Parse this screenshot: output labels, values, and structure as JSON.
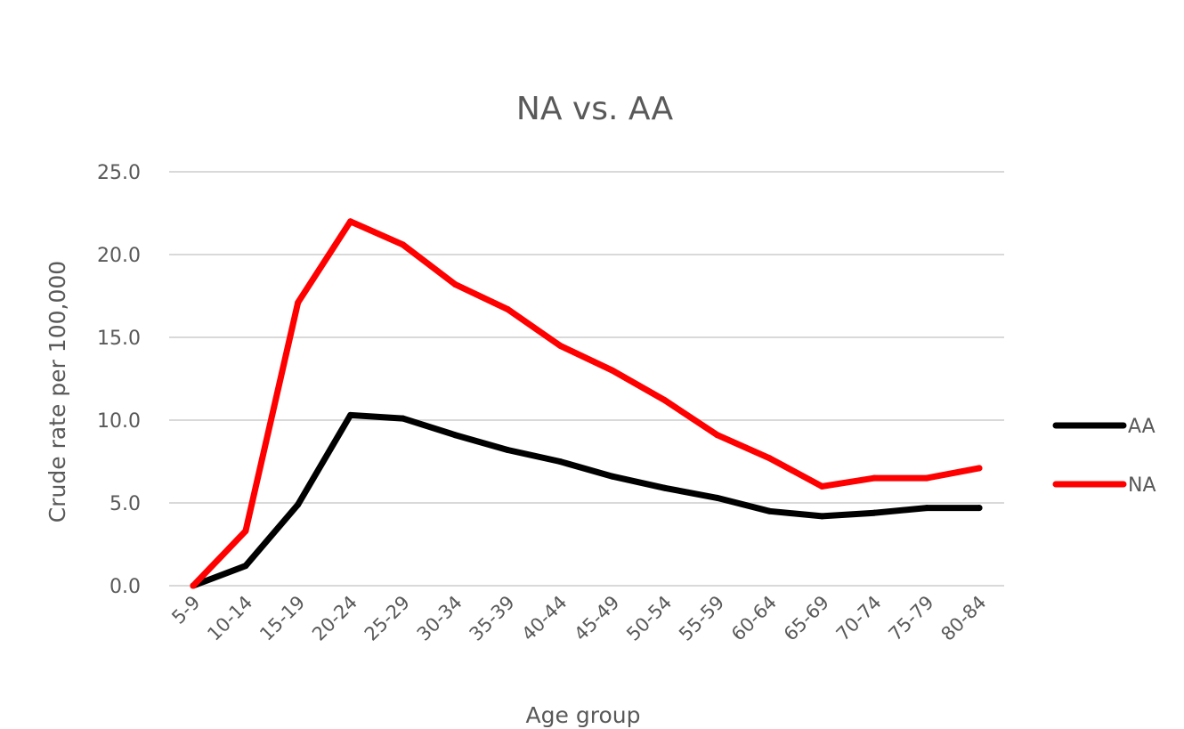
{
  "chart_data": {
    "type": "line",
    "title": "NA vs. AA",
    "xlabel": "Age group",
    "ylabel": "Crude rate per 100,000",
    "ylim": [
      0,
      25
    ],
    "y_ticks": [
      "0.0",
      "5.0",
      "10.0",
      "15.0",
      "20.0",
      "25.0"
    ],
    "grid": true,
    "legend_position": "right",
    "categories": [
      "5-9",
      "10-14",
      "15-19",
      "20-24",
      "25-29",
      "30-34",
      "35-39",
      "40-44",
      "45-49",
      "50-54",
      "55-59",
      "60-64",
      "65-69",
      "70-74",
      "75-79",
      "80-84"
    ],
    "series": [
      {
        "name": "AA",
        "color": "#000000",
        "values": [
          0.0,
          1.2,
          4.9,
          10.3,
          10.1,
          9.1,
          8.2,
          7.5,
          6.6,
          5.9,
          5.3,
          4.5,
          4.2,
          4.4,
          4.7,
          4.7
        ]
      },
      {
        "name": "NA",
        "color": "#ff0000",
        "values": [
          0.0,
          3.3,
          17.1,
          22.0,
          20.6,
          18.2,
          16.7,
          14.5,
          13.0,
          11.2,
          9.1,
          7.7,
          6.0,
          6.5,
          6.5,
          7.1
        ]
      }
    ]
  }
}
